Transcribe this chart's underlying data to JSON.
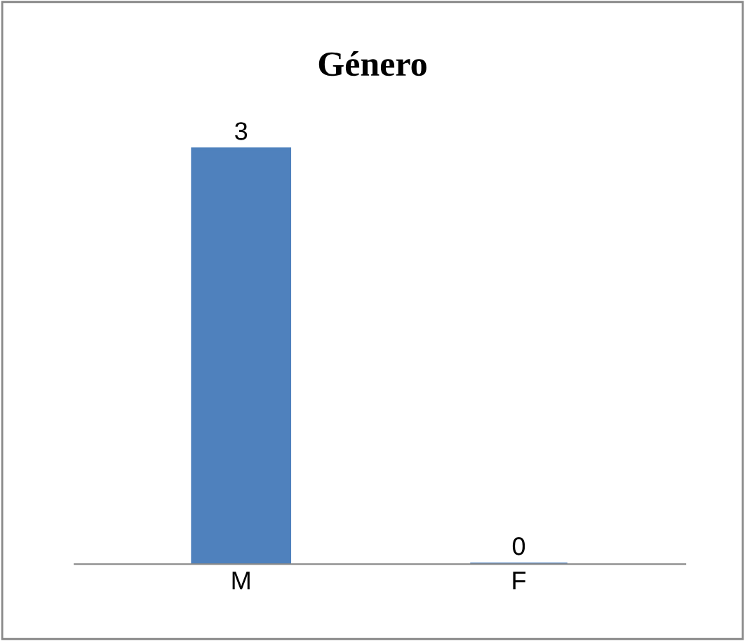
{
  "chart_data": {
    "type": "bar",
    "title": "Género",
    "categories": [
      "M",
      "F"
    ],
    "values": [
      3,
      0
    ],
    "color": "#4f81bd",
    "data_labels": true
  }
}
